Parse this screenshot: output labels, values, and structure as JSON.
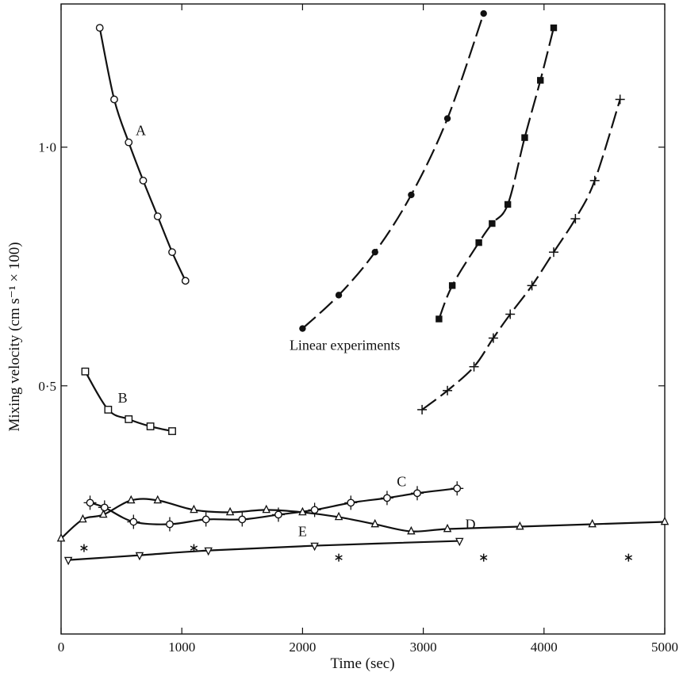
{
  "chart_data": {
    "type": "scatter",
    "title": "",
    "xlabel": "Time (sec)",
    "ylabel": "Mixing velocity (cm s⁻¹ × 100)",
    "xlim": [
      0,
      5000
    ],
    "ylim": [
      -0.02,
      1.3
    ],
    "x_ticks": [
      0,
      1000,
      2000,
      3000,
      4000,
      5000
    ],
    "x_tick_labels": [
      "0",
      "1000",
      "2000",
      "3000",
      "4000",
      "5000"
    ],
    "y_ticks": [
      0.5,
      1.0
    ],
    "y_tick_labels": [
      "0·5",
      "1·0"
    ],
    "grid": false,
    "annotations": [
      {
        "text": "Linear experiments",
        "x": 2350,
        "y": 0.575
      }
    ],
    "series": [
      {
        "name": "A",
        "marker": "circle-open",
        "line": "solid",
        "x": [
          320,
          440,
          560,
          680,
          800,
          920,
          1030
        ],
        "y": [
          1.25,
          1.1,
          1.01,
          0.93,
          0.855,
          0.78,
          0.72
        ],
        "label_at": [
          660,
          1.025
        ]
      },
      {
        "name": "B",
        "marker": "square-open",
        "line": "solid",
        "x": [
          200,
          390,
          560,
          740,
          920
        ],
        "y": [
          0.53,
          0.45,
          0.43,
          0.415,
          0.405
        ],
        "label_at": [
          510,
          0.465
        ]
      },
      {
        "name": "C",
        "marker": "circle-open-cross",
        "line": "solid",
        "x": [
          240,
          360,
          600,
          900,
          1200,
          1500,
          1800,
          2100,
          2400,
          2700,
          2950,
          3280
        ],
        "y": [
          0.255,
          0.245,
          0.215,
          0.21,
          0.22,
          0.22,
          0.23,
          0.24,
          0.255,
          0.265,
          0.275,
          0.285
        ],
        "label_at": [
          2820,
          0.29
        ]
      },
      {
        "name": "D",
        "marker": "triangle-open",
        "line": "solid",
        "x": [
          0,
          180,
          350,
          580,
          800,
          1100,
          1400,
          1700,
          2000,
          2300,
          2600,
          2900,
          3200,
          3800,
          4400,
          5000
        ],
        "y": [
          0.18,
          0.22,
          0.23,
          0.26,
          0.26,
          0.24,
          0.235,
          0.24,
          0.235,
          0.225,
          0.21,
          0.195,
          0.2,
          0.205,
          0.21,
          0.215
        ],
        "label_at": [
          3390,
          0.2
        ]
      },
      {
        "name": "E",
        "marker": "triangle-down-open",
        "line": "solid",
        "x": [
          60,
          650,
          1220,
          2100,
          3300
        ],
        "y": [
          0.135,
          0.145,
          0.155,
          0.165,
          0.175
        ],
        "label_at": [
          2000,
          0.185
        ]
      },
      {
        "name": "",
        "marker": "asterisk",
        "line": "none",
        "x": [
          190,
          1100,
          2300,
          3500,
          4700
        ],
        "y": [
          0.16,
          0.16,
          0.14,
          0.14,
          0.14
        ]
      },
      {
        "name": "",
        "marker": "circle-filled",
        "line": "dashed",
        "x": [
          2000,
          2300,
          2600,
          2900,
          3200,
          3500
        ],
        "y": [
          0.62,
          0.69,
          0.78,
          0.9,
          1.06,
          1.28
        ]
      },
      {
        "name": "",
        "marker": "square-filled",
        "line": "dashed",
        "x": [
          3130,
          3240,
          3460,
          3570,
          3700,
          3840,
          3970,
          4080
        ],
        "y": [
          0.64,
          0.71,
          0.8,
          0.84,
          0.88,
          1.02,
          1.14,
          1.25
        ]
      },
      {
        "name": "",
        "marker": "plus",
        "line": "dashed",
        "x": [
          2990,
          3200,
          3420,
          3580,
          3720,
          3900,
          4080,
          4260,
          4420,
          4630
        ],
        "y": [
          0.45,
          0.49,
          0.54,
          0.6,
          0.65,
          0.71,
          0.78,
          0.85,
          0.93,
          1.1
        ]
      }
    ]
  }
}
